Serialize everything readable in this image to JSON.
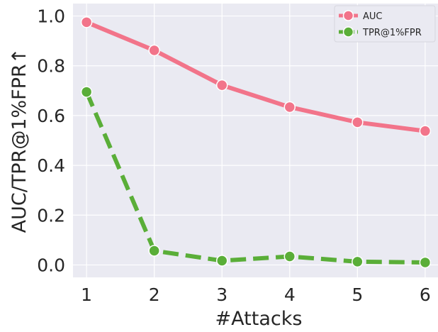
{
  "chart_data": {
    "type": "line",
    "title": "",
    "xlabel": "#Attacks",
    "ylabel": "AUC/TPR@1%FPR↑",
    "x": [
      1,
      2,
      3,
      4,
      5,
      6
    ],
    "xlim": [
      0.8,
      6.2
    ],
    "ylim": [
      -0.05,
      1.05
    ],
    "xticks": [
      1,
      2,
      3,
      4,
      5,
      6
    ],
    "yticks": [
      "0.0",
      "0.2",
      "0.4",
      "0.6",
      "0.8",
      "1.0"
    ],
    "grid": true,
    "legend_position": "top-right",
    "background": "#eaeaf2",
    "series": [
      {
        "name": "AUC",
        "color": "#f2748a",
        "line_style": "solid",
        "marker": "circle",
        "values": [
          0.975,
          0.862,
          0.722,
          0.634,
          0.573,
          0.538
        ]
      },
      {
        "name": "TPR@1%FPR",
        "color": "#5aae38",
        "line_style": "dashed",
        "marker": "circle",
        "values": [
          0.695,
          0.057,
          0.017,
          0.034,
          0.013,
          0.01
        ]
      }
    ]
  }
}
